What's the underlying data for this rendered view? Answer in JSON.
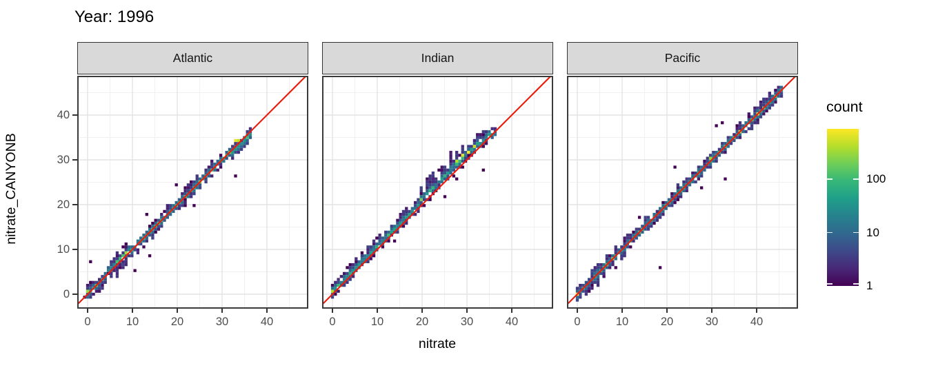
{
  "title": "Year: 1996",
  "axes": {
    "x_title": "nitrate",
    "y_title": "nitrate_CANYONB",
    "x_ticks": {
      "values": [
        0,
        10,
        20,
        30,
        40
      ],
      "labels": [
        "0",
        "10",
        "20",
        "30",
        "40"
      ]
    },
    "y_ticks": {
      "values": [
        0,
        10,
        20,
        30,
        40
      ],
      "labels": [
        "0",
        "10",
        "20",
        "30",
        "40"
      ]
    }
  },
  "legend": {
    "title": "count",
    "tick_counts": [
      100,
      10,
      1
    ],
    "labels": [
      "100",
      "10",
      "1"
    ]
  },
  "colors": {
    "reference_line": "#ec1c0c",
    "strip_fill": "#d9d9d9",
    "strip_border": "#333333",
    "panel_border": "#3a3a3a",
    "grid_major": "#e3e3e3",
    "grid_minor": "#f0f0f0",
    "axis_text": "#4d4d4d",
    "viridis": [
      "#440154",
      "#482878",
      "#3e4989",
      "#31688e",
      "#26828e",
      "#1f9e89",
      "#35b779",
      "#6ece58",
      "#b5de2b",
      "#fde725"
    ]
  },
  "chart_data": {
    "type": "heatmap",
    "subtype": "bin2d_faceted_scatter_density",
    "title": "Year: 1996",
    "xlabel": "nitrate",
    "ylabel": "nitrate_CANYONB",
    "x_range": [
      -2.3,
      49.2
    ],
    "y_range": [
      -3.2,
      48.8
    ],
    "x_tick_values": [
      0,
      10,
      20,
      30,
      40
    ],
    "y_tick_values": [
      0,
      10,
      20,
      30,
      40
    ],
    "grid": "major_and_minor",
    "legend_position": "right",
    "count_scale": "log10",
    "count_ticks": [
      1,
      10,
      100
    ],
    "count_max": 875,
    "bin_size_units": 0.66,
    "reference_line": "y = x (red)",
    "panels": [
      {
        "facet": "Atlantic",
        "seed": 11,
        "x_data_range": [
          -0.3,
          36.6
        ],
        "bias": [
          [
            0,
            0.4
          ],
          [
            7,
            0.8
          ],
          [
            12,
            0.4
          ],
          [
            18,
            0.1
          ],
          [
            24,
            0.3
          ],
          [
            31,
            0.0
          ],
          [
            36.5,
            -0.4
          ]
        ],
        "spread_up": [
          [
            0,
            1.2
          ],
          [
            8,
            1.4
          ],
          [
            15,
            1.1
          ],
          [
            22,
            1.3
          ],
          [
            30,
            1.2
          ],
          [
            36.5,
            0.8
          ]
        ],
        "spread_dn": [
          [
            0,
            1.0
          ],
          [
            6,
            2.0
          ],
          [
            10,
            1.6
          ],
          [
            16,
            1.0
          ],
          [
            28,
            1.0
          ],
          [
            36.5,
            1.0
          ]
        ],
        "hotspots": [
          [
            0.2,
            0.6,
            300
          ],
          [
            8.8,
            9.4,
            320
          ],
          [
            25,
            25.4,
            180
          ],
          [
            33,
            34,
            700
          ],
          [
            33.8,
            34.5,
            450
          ]
        ],
        "outliers": [
          [
            0.4,
            7.5
          ],
          [
            10.3,
            5.4
          ],
          [
            13.7,
            8.6
          ],
          [
            23.8,
            19.6
          ],
          [
            32.8,
            26.5
          ],
          [
            13.1,
            18.0
          ],
          [
            19.5,
            24.2
          ]
        ]
      },
      {
        "facet": "Indian",
        "seed": 7,
        "x_data_range": [
          -0.1,
          36.6
        ],
        "bias": [
          [
            0,
            0.5
          ],
          [
            10,
            0.8
          ],
          [
            20,
            1.1
          ],
          [
            27,
            1.7
          ],
          [
            31,
            1.4
          ],
          [
            34,
            0.8
          ],
          [
            36.5,
            0.1
          ]
        ],
        "spread_up": [
          [
            0,
            1.1
          ],
          [
            10,
            1.3
          ],
          [
            18,
            1.6
          ],
          [
            23,
            2.4
          ],
          [
            30,
            2.6
          ],
          [
            33,
            1.4
          ],
          [
            36.5,
            0.6
          ]
        ],
        "spread_dn": [
          [
            0,
            0.8
          ],
          [
            10,
            0.8
          ],
          [
            20,
            0.9
          ],
          [
            27,
            1.2
          ],
          [
            33,
            1.0
          ],
          [
            36.5,
            0.6
          ]
        ],
        "hotspots": [
          [
            0.3,
            0.9,
            380
          ],
          [
            20,
            21.2,
            200
          ],
          [
            28,
            29.8,
            380
          ],
          [
            29.3,
            30.9,
            600
          ],
          [
            30.4,
            31.9,
            800
          ],
          [
            31.4,
            32.7,
            500
          ]
        ],
        "outliers": [
          [
            33.7,
            27.4
          ],
          [
            25.4,
            22.0
          ],
          [
            24.0,
            27.5
          ],
          [
            6.6,
            9.4
          ]
        ]
      },
      {
        "facet": "Pacific",
        "seed": 23,
        "x_data_range": [
          -0.3,
          45.8
        ],
        "bias": [
          [
            0,
            0.2
          ],
          [
            10,
            0.1
          ],
          [
            20,
            0.2
          ],
          [
            30,
            0.2
          ],
          [
            40,
            0.3
          ],
          [
            45.8,
            0.0
          ]
        ],
        "spread_up": [
          [
            0,
            1.0
          ],
          [
            5,
            1.5
          ],
          [
            12,
            1.2
          ],
          [
            20,
            1.2
          ],
          [
            30,
            1.1
          ],
          [
            40,
            1.5
          ],
          [
            45.8,
            0.9
          ]
        ],
        "spread_dn": [
          [
            0,
            1.0
          ],
          [
            5,
            1.7
          ],
          [
            12,
            1.3
          ],
          [
            20,
            1.0
          ],
          [
            30,
            1.0
          ],
          [
            40,
            1.2
          ],
          [
            45.8,
            0.8
          ]
        ],
        "hotspots": [
          [
            0,
            0.3,
            850
          ],
          [
            8,
            8.2,
            220
          ],
          [
            30,
            30.3,
            300
          ],
          [
            36,
            36.3,
            450
          ],
          [
            40,
            40.3,
            600
          ]
        ],
        "outliers": [
          [
            18.5,
            6.0
          ],
          [
            33.1,
            25.7
          ],
          [
            31.2,
            37.5
          ],
          [
            32.3,
            38.3
          ],
          [
            21.8,
            28.2
          ],
          [
            27.7,
            24.0
          ],
          [
            14.0,
            16.9
          ]
        ]
      }
    ]
  }
}
